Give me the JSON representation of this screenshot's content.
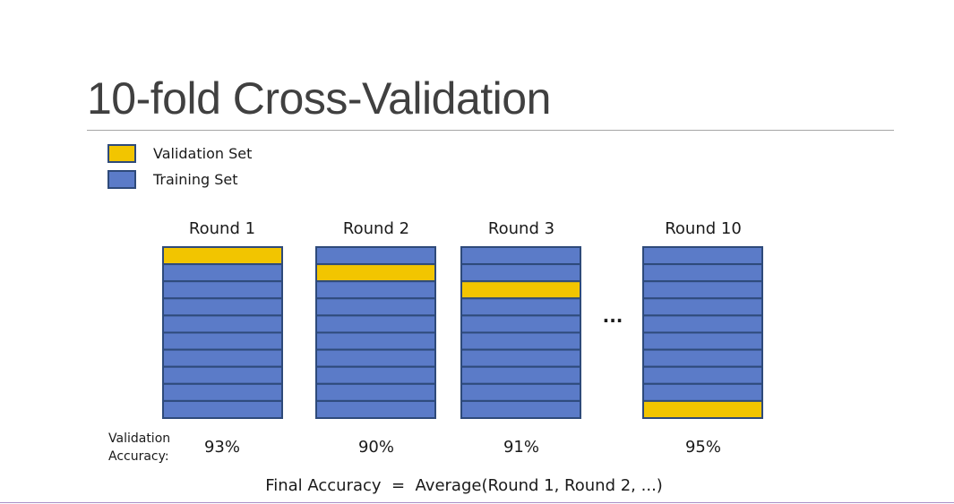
{
  "title": "10-fold Cross-Validation",
  "colors": {
    "validation": "#f2c500",
    "training": "#5b7bc8",
    "border": "#2e4a7a"
  },
  "legend": [
    {
      "label": "Validation Set",
      "kind": "validation"
    },
    {
      "label": "Training Set",
      "kind": "training"
    }
  ],
  "folds_per_round": 10,
  "rounds": [
    {
      "label": "Round 1",
      "validation_fold": 1,
      "accuracy": "93%"
    },
    {
      "label": "Round 2",
      "validation_fold": 2,
      "accuracy": "90%"
    },
    {
      "label": "Round 3",
      "validation_fold": 3,
      "accuracy": "91%"
    },
    {
      "label": "Round 10",
      "validation_fold": 10,
      "accuracy": "95%"
    }
  ],
  "ellipsis": "...",
  "accuracy_label_lines": [
    "Validation",
    "Accuracy:"
  ],
  "final_formula": "Final Accuracy  =  Average(Round 1, Round 2, ...)"
}
